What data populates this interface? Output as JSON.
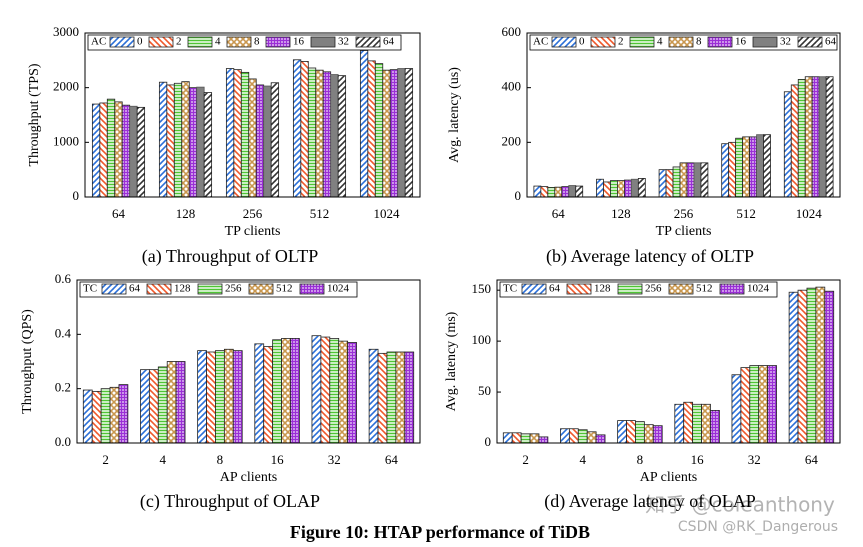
{
  "chart_data": [
    {
      "type": "bar",
      "caption": "(a) Throughput of OLTP",
      "xlabel": "TP clients",
      "ylabel": "Throughput (TPS)",
      "legend_title": "AC",
      "categories": [
        "64",
        "128",
        "256",
        "512",
        "1024"
      ],
      "ylim": [
        0,
        3000
      ],
      "yticks": [
        0,
        1000,
        2000,
        3000
      ],
      "series": [
        {
          "name": "0",
          "color": "#2b6fd8",
          "pattern": "diag",
          "values": [
            1700,
            2100,
            2350,
            2510,
            2680
          ]
        },
        {
          "name": "2",
          "color": "#f0582a",
          "pattern": "back",
          "values": [
            1720,
            2050,
            2330,
            2480,
            2490
          ]
        },
        {
          "name": "4",
          "color": "#4fc534",
          "pattern": "horiz",
          "values": [
            1790,
            2080,
            2280,
            2360,
            2440
          ]
        },
        {
          "name": "8",
          "color": "#c9974e",
          "pattern": "cross",
          "values": [
            1740,
            2110,
            2160,
            2320,
            2320
          ]
        },
        {
          "name": "16",
          "color": "#9a2fd6",
          "pattern": "grid",
          "values": [
            1680,
            2000,
            2050,
            2290,
            2330
          ]
        },
        {
          "name": "32",
          "color": "#808080",
          "pattern": "solid",
          "values": [
            1660,
            2010,
            2030,
            2240,
            2350
          ]
        },
        {
          "name": "64",
          "color": "#333333",
          "pattern": "diag",
          "values": [
            1640,
            1910,
            2090,
            2220,
            2350
          ]
        }
      ]
    },
    {
      "type": "bar",
      "caption": "(b) Average latency of OLTP",
      "xlabel": "TP clients",
      "ylabel": "Avg. latency (us)",
      "legend_title": "AC",
      "categories": [
        "64",
        "128",
        "256",
        "512",
        "1024"
      ],
      "ylim": [
        0,
        600
      ],
      "yticks": [
        0,
        200,
        400,
        600
      ],
      "series": [
        {
          "name": "0",
          "color": "#2b6fd8",
          "pattern": "diag",
          "values": [
            40,
            65,
            100,
            195,
            385
          ]
        },
        {
          "name": "2",
          "color": "#f0582a",
          "pattern": "back",
          "values": [
            38,
            55,
            100,
            200,
            410
          ]
        },
        {
          "name": "4",
          "color": "#4fc534",
          "pattern": "horiz",
          "values": [
            35,
            60,
            110,
            215,
            430
          ]
        },
        {
          "name": "8",
          "color": "#c9974e",
          "pattern": "cross",
          "values": [
            36,
            60,
            125,
            220,
            440
          ]
        },
        {
          "name": "16",
          "color": "#9a2fd6",
          "pattern": "grid",
          "values": [
            38,
            62,
            125,
            220,
            440
          ]
        },
        {
          "name": "32",
          "color": "#808080",
          "pattern": "solid",
          "values": [
            42,
            65,
            125,
            228,
            440
          ]
        },
        {
          "name": "64",
          "color": "#333333",
          "pattern": "diag",
          "values": [
            40,
            68,
            125,
            228,
            440
          ]
        }
      ]
    },
    {
      "type": "bar",
      "caption": "(c) Throughput of OLAP",
      "xlabel": "AP clients",
      "ylabel": "Throughput (QPS)",
      "legend_title": "TC",
      "categories": [
        "2",
        "4",
        "8",
        "16",
        "32",
        "64"
      ],
      "ylim": [
        0,
        0.6
      ],
      "yticks": [
        {
          "value": 0,
          "label": "0.0"
        },
        0.2,
        0.4,
        0.6
      ],
      "series": [
        {
          "name": "64",
          "color": "#2b6fd8",
          "pattern": "diag",
          "values": [
            0.195,
            0.27,
            0.34,
            0.365,
            0.395,
            0.345
          ]
        },
        {
          "name": "128",
          "color": "#f0582a",
          "pattern": "back",
          "values": [
            0.19,
            0.27,
            0.335,
            0.355,
            0.39,
            0.33
          ]
        },
        {
          "name": "256",
          "color": "#4fc534",
          "pattern": "horiz",
          "values": [
            0.2,
            0.28,
            0.34,
            0.38,
            0.385,
            0.335
          ]
        },
        {
          "name": "512",
          "color": "#c9974e",
          "pattern": "cross",
          "values": [
            0.205,
            0.3,
            0.345,
            0.385,
            0.375,
            0.335
          ]
        },
        {
          "name": "1024",
          "color": "#9a2fd6",
          "pattern": "grid",
          "values": [
            0.215,
            0.3,
            0.34,
            0.385,
            0.37,
            0.335
          ]
        }
      ]
    },
    {
      "type": "bar",
      "caption": "(d) Average latency of OLAP",
      "xlabel": "AP clients",
      "ylabel": "Avg. latency (ms)",
      "legend_title": "TC",
      "categories": [
        "2",
        "4",
        "8",
        "16",
        "32",
        "64"
      ],
      "ylim": [
        0,
        160
      ],
      "yticks": [
        0,
        50,
        100,
        150
      ],
      "series": [
        {
          "name": "64",
          "color": "#2b6fd8",
          "pattern": "diag",
          "values": [
            10,
            14,
            22,
            38,
            67,
            148
          ]
        },
        {
          "name": "128",
          "color": "#f0582a",
          "pattern": "back",
          "values": [
            10,
            14,
            22,
            40,
            74,
            150
          ]
        },
        {
          "name": "256",
          "color": "#4fc534",
          "pattern": "horiz",
          "values": [
            9,
            13,
            21,
            38,
            76,
            152
          ]
        },
        {
          "name": "512",
          "color": "#c9974e",
          "pattern": "cross",
          "values": [
            9,
            11,
            18,
            38,
            76,
            153
          ]
        },
        {
          "name": "1024",
          "color": "#9a2fd6",
          "pattern": "grid",
          "values": [
            6,
            8,
            17,
            32,
            76,
            149
          ]
        }
      ]
    }
  ],
  "caption": "Figure 10: HTAP performance of TiDB",
  "watermarks": [
    "知乎 @coleanthony",
    "CSDN @RK_Dangerous"
  ]
}
